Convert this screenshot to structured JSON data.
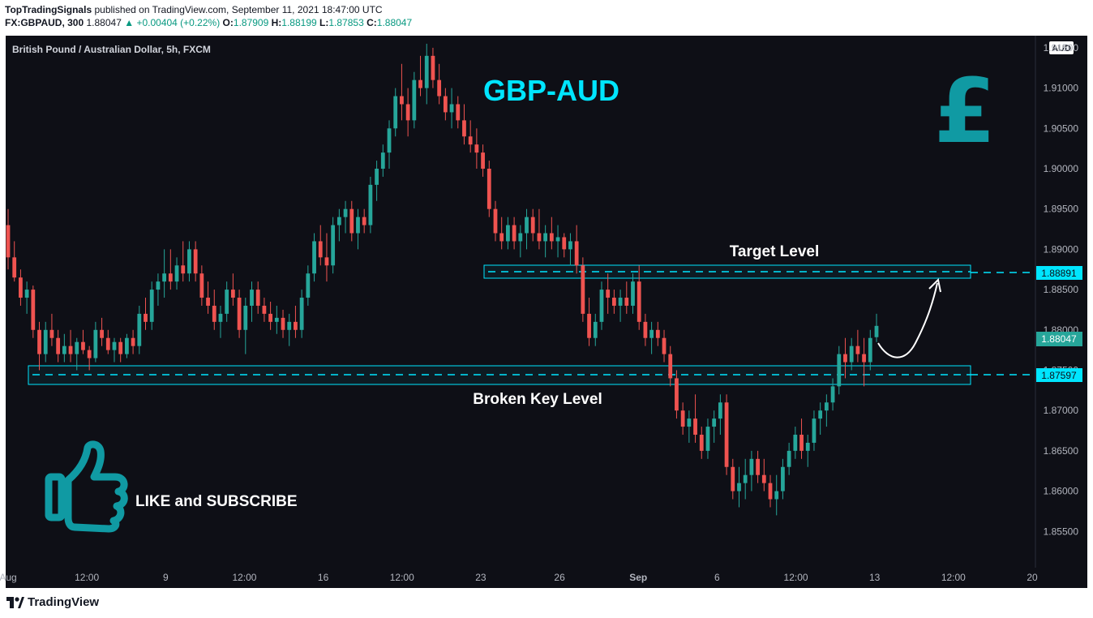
{
  "header": {
    "publisher": "TopTradingSignals",
    "published_text": "published on TradingView.com, September 11, 2021 18:47:00 UTC",
    "symbol": "FX:GBPAUD, 300",
    "last": "1.88047",
    "change": "+0.00404 (+0.22%)",
    "o_label": "O:",
    "o_val": "1.87909",
    "h_label": "H:",
    "h_val": "1.88199",
    "l_label": "L:",
    "l_val": "1.87853",
    "c_label": "C:",
    "c_val": "1.88047"
  },
  "chart_title": "British Pound / Australian Dollar, 5h, FXCM",
  "currency_badge": "AUD",
  "annotations": {
    "pair": "GBP-AUD",
    "target": "Target Level",
    "broken": "Broken Key  Level",
    "like": "LIKE and SUBSCRIBE",
    "pound_symbol": "£"
  },
  "price_labels": {
    "target": "1.88891",
    "current": "1.88047",
    "broken": "1.87597"
  },
  "colors": {
    "up": "#26a69a",
    "down": "#ef5350",
    "accent": "#00e5ff",
    "teal_brand": "#109aa3",
    "current_label_bg": "#26a69a"
  },
  "footer": {
    "brand": "TradingView"
  },
  "chart_data": {
    "type": "candlestick",
    "title": "British Pound / Australian Dollar, 5h, FXCM",
    "y_axis_ticks": [
      "1.91500",
      "1.91000",
      "1.90500",
      "1.90000",
      "1.89500",
      "1.89000",
      "1.88500",
      "1.88000",
      "1.87500",
      "1.87000",
      "1.86500",
      "1.86000",
      "1.85500"
    ],
    "ylim": [
      1.8505,
      1.9165
    ],
    "x_axis_ticks": [
      "Aug",
      "12:00",
      "9",
      "12:00",
      "16",
      "12:00",
      "23",
      "26",
      "Sep",
      "6",
      "12:00",
      "13",
      "12:00",
      "20"
    ],
    "levels": [
      {
        "name": "Target Level",
        "value": 1.88891
      },
      {
        "name": "Broken Key  Level",
        "value": 1.87597
      }
    ],
    "candles": [
      [
        1.893,
        1.895,
        1.8875,
        1.889
      ],
      [
        1.889,
        1.891,
        1.886,
        1.8865
      ],
      [
        1.8865,
        1.8875,
        1.883,
        1.884
      ],
      [
        1.884,
        1.886,
        1.882,
        1.885
      ],
      [
        1.885,
        1.8855,
        1.879,
        1.88
      ],
      [
        1.88,
        1.881,
        1.875,
        1.877
      ],
      [
        1.877,
        1.881,
        1.876,
        1.88
      ],
      [
        1.88,
        1.882,
        1.878,
        1.879
      ],
      [
        1.879,
        1.88,
        1.876,
        1.877
      ],
      [
        1.877,
        1.8795,
        1.876,
        1.878
      ],
      [
        1.878,
        1.88,
        1.876,
        1.877
      ],
      [
        1.877,
        1.879,
        1.875,
        1.8785
      ],
      [
        1.8785,
        1.88,
        1.877,
        1.8775
      ],
      [
        1.8775,
        1.878,
        1.875,
        1.8765
      ],
      [
        1.8765,
        1.881,
        1.876,
        1.88
      ],
      [
        1.88,
        1.8815,
        1.878,
        1.879
      ],
      [
        1.879,
        1.88,
        1.877,
        1.8775
      ],
      [
        1.8775,
        1.879,
        1.876,
        1.8785
      ],
      [
        1.8785,
        1.879,
        1.876,
        1.877
      ],
      [
        1.877,
        1.8795,
        1.8765,
        1.879
      ],
      [
        1.879,
        1.88,
        1.877,
        1.878
      ],
      [
        1.878,
        1.883,
        1.877,
        1.882
      ],
      [
        1.882,
        1.884,
        1.88,
        1.881
      ],
      [
        1.881,
        1.886,
        1.88,
        1.885
      ],
      [
        1.885,
        1.887,
        1.883,
        1.886
      ],
      [
        1.886,
        1.89,
        1.884,
        1.887
      ],
      [
        1.887,
        1.89,
        1.885,
        1.886
      ],
      [
        1.886,
        1.889,
        1.885,
        1.888
      ],
      [
        1.888,
        1.891,
        1.886,
        1.887
      ],
      [
        1.887,
        1.891,
        1.886,
        1.89
      ],
      [
        1.89,
        1.891,
        1.886,
        1.887
      ],
      [
        1.887,
        1.888,
        1.883,
        1.884
      ],
      [
        1.884,
        1.886,
        1.882,
        1.883
      ],
      [
        1.883,
        1.885,
        1.88,
        1.881
      ],
      [
        1.881,
        1.883,
        1.879,
        1.882
      ],
      [
        1.882,
        1.886,
        1.881,
        1.885
      ],
      [
        1.885,
        1.887,
        1.883,
        1.884
      ],
      [
        1.884,
        1.885,
        1.879,
        1.88
      ],
      [
        1.88,
        1.884,
        1.877,
        1.883
      ],
      [
        1.883,
        1.886,
        1.881,
        1.885
      ],
      [
        1.885,
        1.886,
        1.882,
        1.883
      ],
      [
        1.883,
        1.884,
        1.881,
        1.882
      ],
      [
        1.882,
        1.8835,
        1.88,
        1.881
      ],
      [
        1.881,
        1.883,
        1.8795,
        1.8815
      ],
      [
        1.8815,
        1.8825,
        1.879,
        1.88
      ],
      [
        1.88,
        1.882,
        1.878,
        1.881
      ],
      [
        1.881,
        1.883,
        1.879,
        1.88
      ],
      [
        1.88,
        1.885,
        1.879,
        1.884
      ],
      [
        1.884,
        1.888,
        1.883,
        1.887
      ],
      [
        1.887,
        1.892,
        1.886,
        1.891
      ],
      [
        1.891,
        1.893,
        1.888,
        1.889
      ],
      [
        1.889,
        1.892,
        1.886,
        1.888
      ],
      [
        1.888,
        1.894,
        1.887,
        1.893
      ],
      [
        1.893,
        1.895,
        1.891,
        1.894
      ],
      [
        1.894,
        1.896,
        1.892,
        1.895
      ],
      [
        1.895,
        1.896,
        1.891,
        1.892
      ],
      [
        1.892,
        1.895,
        1.89,
        1.894
      ],
      [
        1.894,
        1.895,
        1.892,
        1.893
      ],
      [
        1.893,
        1.899,
        1.892,
        1.898
      ],
      [
        1.898,
        1.901,
        1.896,
        1.9
      ],
      [
        1.9,
        1.903,
        1.899,
        1.902
      ],
      [
        1.902,
        1.906,
        1.9,
        1.905
      ],
      [
        1.905,
        1.91,
        1.904,
        1.909
      ],
      [
        1.909,
        1.913,
        1.906,
        1.908
      ],
      [
        1.908,
        1.91,
        1.904,
        1.906
      ],
      [
        1.906,
        1.912,
        1.905,
        1.911
      ],
      [
        1.911,
        1.914,
        1.909,
        1.91
      ],
      [
        1.91,
        1.9155,
        1.908,
        1.914
      ],
      [
        1.914,
        1.915,
        1.91,
        1.911
      ],
      [
        1.911,
        1.913,
        1.908,
        1.909
      ],
      [
        1.909,
        1.91,
        1.906,
        1.907
      ],
      [
        1.907,
        1.91,
        1.905,
        1.908
      ],
      [
        1.908,
        1.909,
        1.905,
        1.906
      ],
      [
        1.906,
        1.908,
        1.903,
        1.904
      ],
      [
        1.904,
        1.906,
        1.902,
        1.903
      ],
      [
        1.903,
        1.905,
        1.9,
        1.902
      ],
      [
        1.902,
        1.903,
        1.899,
        1.9
      ],
      [
        1.9,
        1.901,
        1.894,
        1.895
      ],
      [
        1.895,
        1.896,
        1.891,
        1.892
      ],
      [
        1.892,
        1.894,
        1.89,
        1.891
      ],
      [
        1.891,
        1.894,
        1.89,
        1.893
      ],
      [
        1.893,
        1.894,
        1.89,
        1.891
      ],
      [
        1.891,
        1.893,
        1.889,
        1.892
      ],
      [
        1.892,
        1.895,
        1.89,
        1.894
      ],
      [
        1.894,
        1.895,
        1.891,
        1.892
      ],
      [
        1.892,
        1.895,
        1.89,
        1.891
      ],
      [
        1.891,
        1.893,
        1.889,
        1.892
      ],
      [
        1.892,
        1.894,
        1.89,
        1.891
      ],
      [
        1.891,
        1.893,
        1.889,
        1.8915
      ],
      [
        1.8915,
        1.892,
        1.889,
        1.89
      ],
      [
        1.89,
        1.892,
        1.888,
        1.891
      ],
      [
        1.891,
        1.893,
        1.887,
        1.888
      ],
      [
        1.888,
        1.889,
        1.881,
        1.882
      ],
      [
        1.882,
        1.884,
        1.878,
        1.879
      ],
      [
        1.879,
        1.882,
        1.878,
        1.881
      ],
      [
        1.881,
        1.886,
        1.88,
        1.885
      ],
      [
        1.885,
        1.887,
        1.882,
        1.884
      ],
      [
        1.884,
        1.885,
        1.882,
        1.883
      ],
      [
        1.883,
        1.885,
        1.881,
        1.884
      ],
      [
        1.884,
        1.886,
        1.882,
        1.883
      ],
      [
        1.883,
        1.887,
        1.882,
        1.886
      ],
      [
        1.886,
        1.888,
        1.88,
        1.881
      ],
      [
        1.881,
        1.882,
        1.878,
        1.879
      ],
      [
        1.879,
        1.881,
        1.877,
        1.88
      ],
      [
        1.88,
        1.881,
        1.878,
        1.879
      ],
      [
        1.879,
        1.88,
        1.876,
        1.877
      ],
      [
        1.877,
        1.878,
        1.873,
        1.874
      ],
      [
        1.874,
        1.875,
        1.869,
        1.87
      ],
      [
        1.87,
        1.871,
        1.867,
        1.868
      ],
      [
        1.868,
        1.87,
        1.866,
        1.869
      ],
      [
        1.869,
        1.872,
        1.866,
        1.867
      ],
      [
        1.867,
        1.868,
        1.864,
        1.865
      ],
      [
        1.865,
        1.869,
        1.864,
        1.868
      ],
      [
        1.868,
        1.87,
        1.866,
        1.869
      ],
      [
        1.869,
        1.872,
        1.867,
        1.871
      ],
      [
        1.871,
        1.872,
        1.862,
        1.863
      ],
      [
        1.863,
        1.864,
        1.859,
        1.86
      ],
      [
        1.86,
        1.863,
        1.858,
        1.861
      ],
      [
        1.861,
        1.864,
        1.859,
        1.862
      ],
      [
        1.862,
        1.865,
        1.86,
        1.864
      ],
      [
        1.864,
        1.865,
        1.861,
        1.862
      ],
      [
        1.862,
        1.864,
        1.86,
        1.861
      ],
      [
        1.861,
        1.862,
        1.858,
        1.859
      ],
      [
        1.859,
        1.862,
        1.857,
        1.86
      ],
      [
        1.86,
        1.864,
        1.859,
        1.863
      ],
      [
        1.863,
        1.866,
        1.862,
        1.865
      ],
      [
        1.865,
        1.868,
        1.864,
        1.867
      ],
      [
        1.867,
        1.869,
        1.864,
        1.865
      ],
      [
        1.865,
        1.867,
        1.863,
        1.866
      ],
      [
        1.866,
        1.87,
        1.865,
        1.869
      ],
      [
        1.869,
        1.871,
        1.867,
        1.87
      ],
      [
        1.87,
        1.872,
        1.868,
        1.871
      ],
      [
        1.871,
        1.874,
        1.87,
        1.873
      ],
      [
        1.873,
        1.878,
        1.872,
        1.877
      ],
      [
        1.877,
        1.879,
        1.874,
        1.876
      ],
      [
        1.876,
        1.879,
        1.875,
        1.878
      ],
      [
        1.878,
        1.88,
        1.876,
        1.877
      ],
      [
        1.877,
        1.879,
        1.873,
        1.876
      ],
      [
        1.876,
        1.88,
        1.875,
        1.879
      ],
      [
        1.8791,
        1.882,
        1.8785,
        1.8805
      ]
    ]
  }
}
